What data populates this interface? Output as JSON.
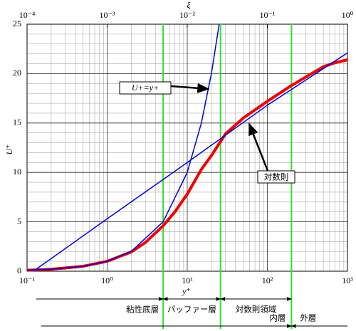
{
  "chart_data": {
    "type": "line",
    "xscale": "log",
    "xlabel": "y⁺",
    "ylabel": "U⁺",
    "x2label": "ξ",
    "xlim": [
      0.1,
      1000
    ],
    "ylim": [
      0,
      25
    ],
    "x2lim": [
      0.0001,
      1
    ],
    "xticks": [
      {
        "value": 0.1,
        "label": "10⁻¹"
      },
      {
        "value": 1,
        "label": "10⁰"
      },
      {
        "value": 10,
        "label": "10¹"
      },
      {
        "value": 100,
        "label": "10²"
      },
      {
        "value": 1000,
        "label": "10³"
      }
    ],
    "x2ticks": [
      {
        "value": 0.0001,
        "label": "10⁻⁴"
      },
      {
        "value": 0.001,
        "label": "10⁻³"
      },
      {
        "value": 0.01,
        "label": "10⁻²"
      },
      {
        "value": 0.1,
        "label": "10⁻¹"
      },
      {
        "value": 1,
        "label": "10⁰"
      }
    ],
    "yticks": [
      0,
      5,
      10,
      15,
      20,
      25
    ],
    "grid": true,
    "series": [
      {
        "color": "#ee0000",
        "width": 4,
        "x": [
          0.1,
          0.2,
          0.5,
          1,
          2,
          3,
          5,
          7,
          10,
          15,
          20,
          30,
          50,
          100,
          200,
          500,
          700,
          1000
        ],
        "values": [
          0.1,
          0.2,
          0.5,
          1,
          1.95,
          2.9,
          4.6,
          6.0,
          7.8,
          10.3,
          11.7,
          13.9,
          15.5,
          17.2,
          18.8,
          20.7,
          21.1,
          21.4
        ]
      },
      {
        "name": "U+=y+",
        "color": "#0000dd",
        "width": 1.5,
        "x": [
          0.1,
          0.2,
          0.5,
          1,
          2,
          5,
          10,
          15,
          20,
          25
        ],
        "values": [
          0.1,
          0.2,
          0.5,
          1,
          2,
          5,
          10,
          15,
          20,
          25
        ]
      },
      {
        "name": "対数則",
        "color": "#0000dd",
        "width": 1.5,
        "x": [
          0.12,
          1,
          10,
          100,
          1000
        ],
        "values": [
          0,
          5.3,
          11.0,
          16.8,
          22.1
        ]
      }
    ],
    "vlines": [
      5,
      26,
      200
    ],
    "vline_color": "#33dd33",
    "regions": [
      {
        "label": "粘性底層",
        "x": [
          0.13,
          5
        ]
      },
      {
        "label": "バッファー層",
        "x": [
          5,
          26
        ]
      },
      {
        "label": "対数則領域",
        "x": [
          26,
          200
        ]
      }
    ],
    "layers": [
      {
        "label": "内層",
        "x": [
          0.15,
          200
        ]
      },
      {
        "label": "外層",
        "x": [
          200,
          1000
        ]
      }
    ]
  }
}
